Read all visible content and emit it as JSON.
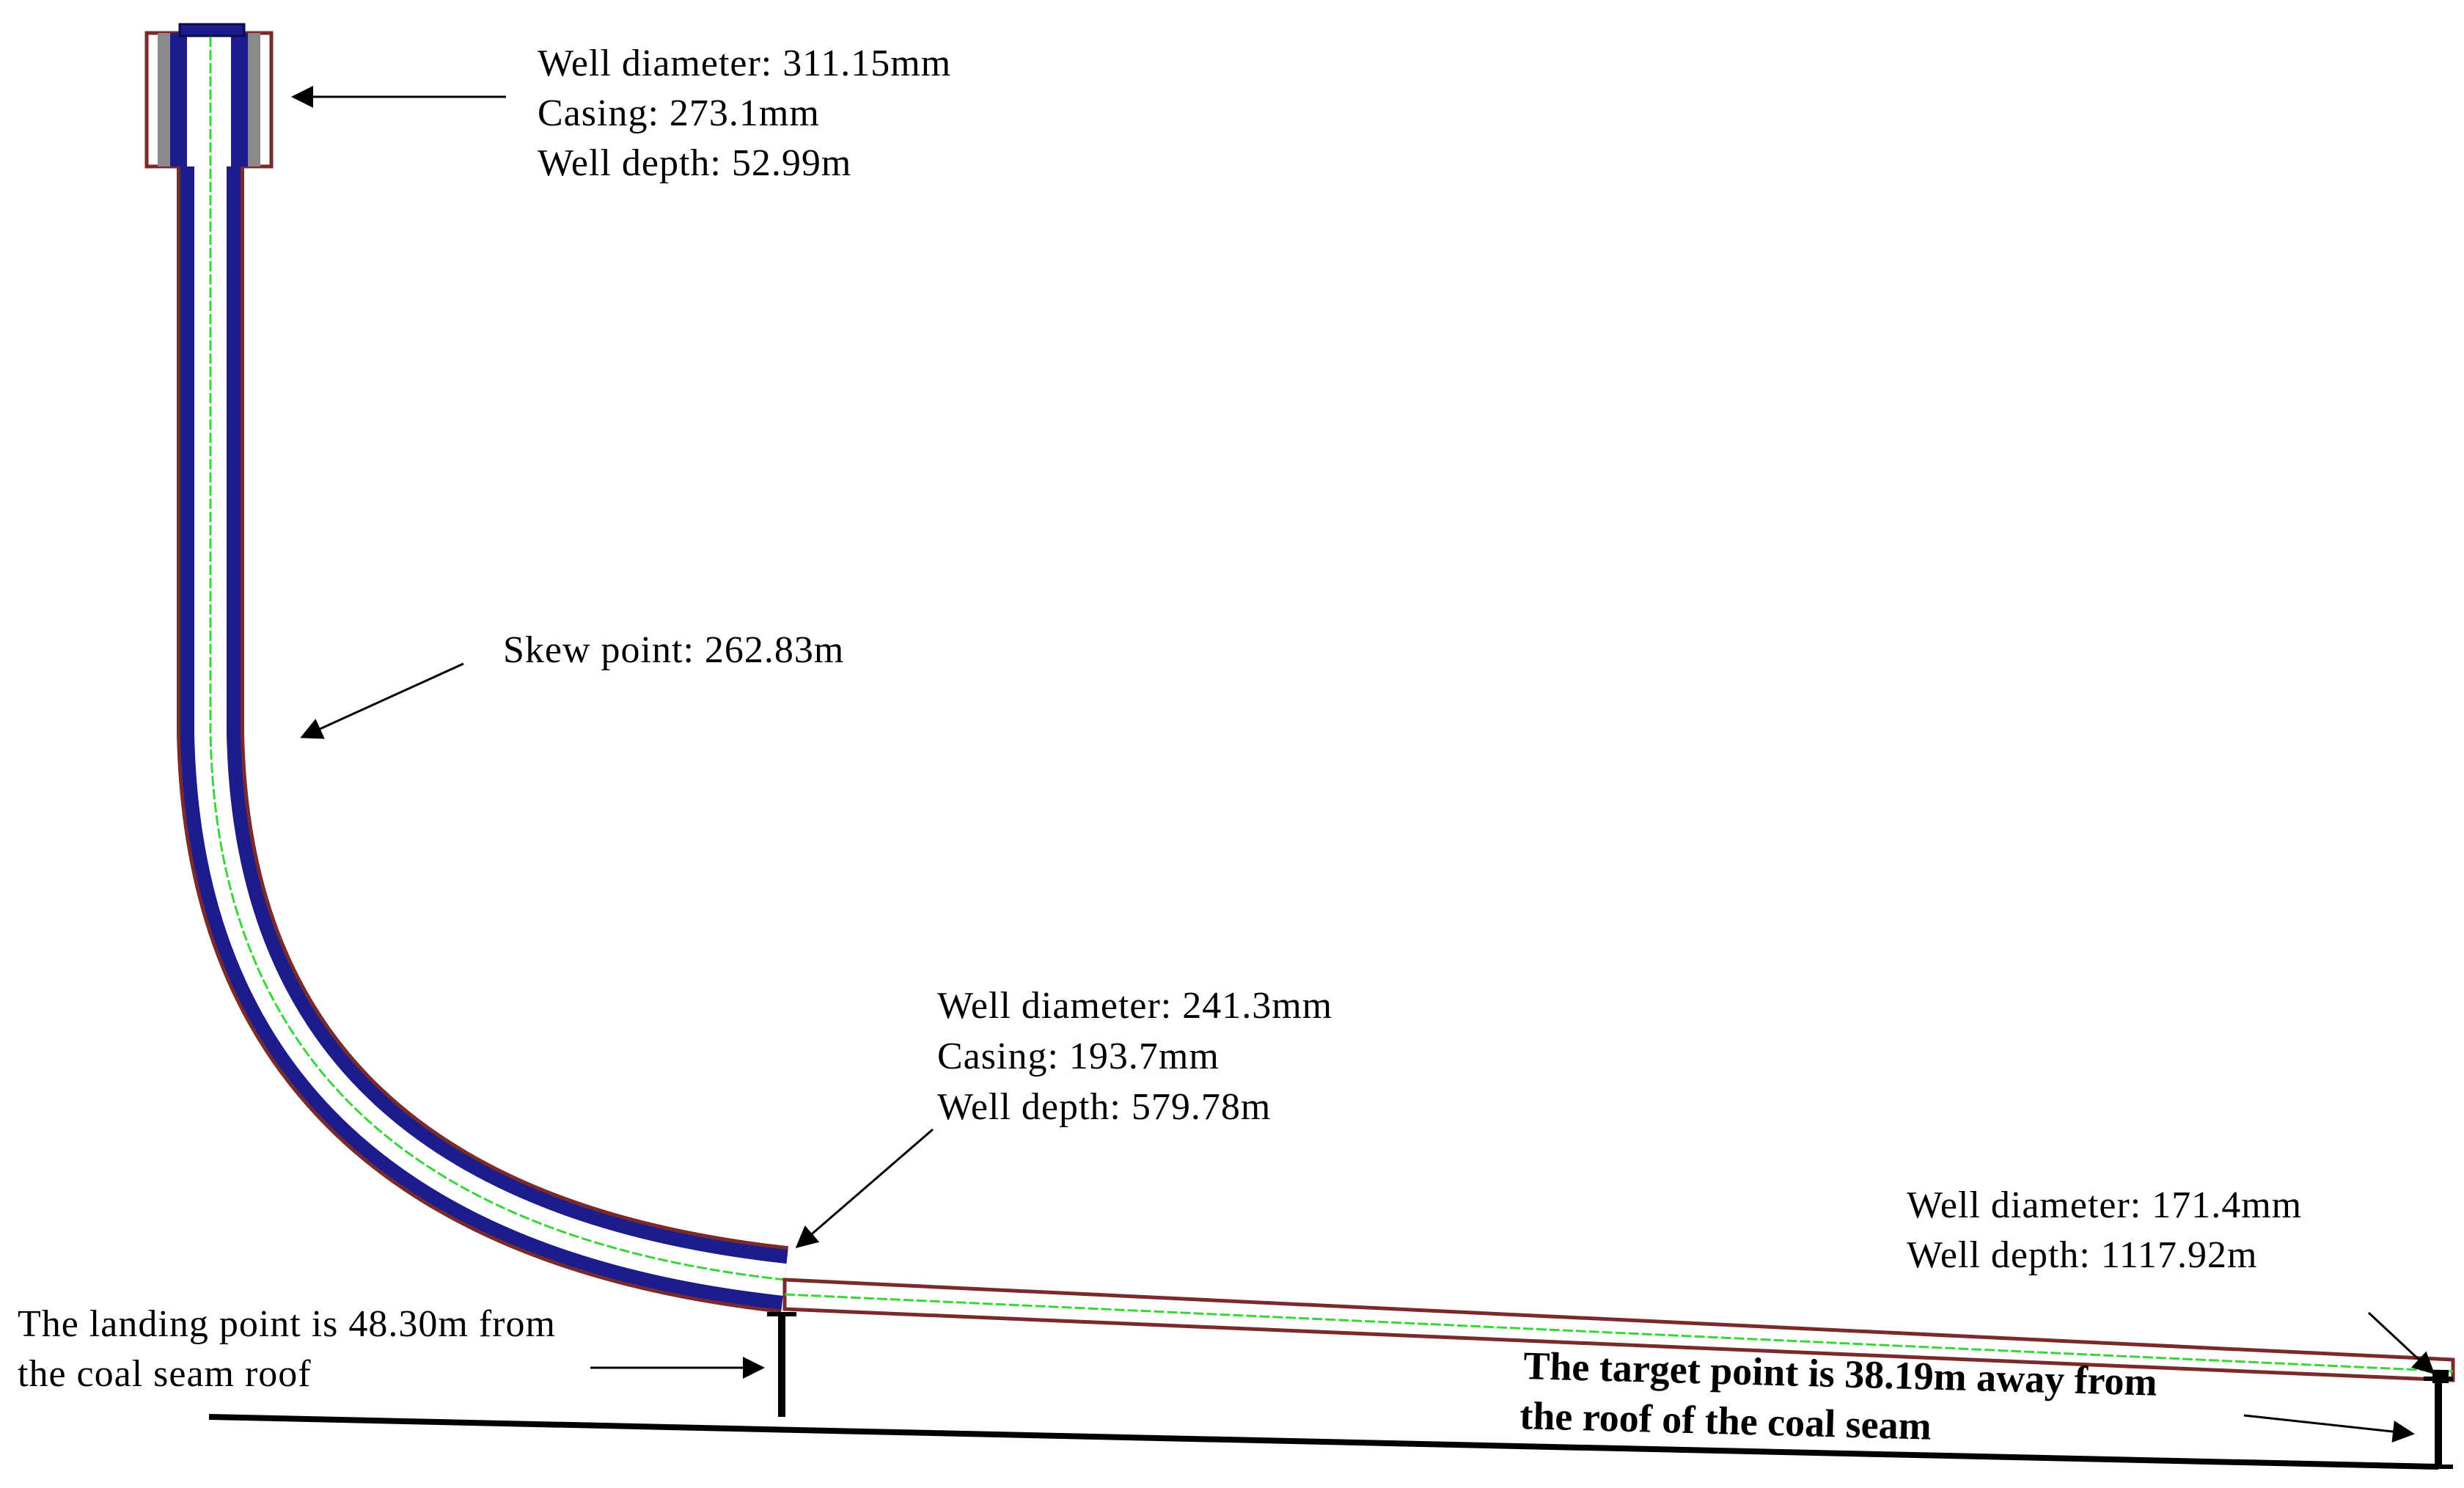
{
  "annotations": {
    "wellhead": {
      "line1": "Well diameter: 311.15mm",
      "line2": "Casing: 273.1mm",
      "line3": "Well depth: 52.99m"
    },
    "skew": {
      "line1": "Skew point: 262.83m"
    },
    "second_section": {
      "line1": "Well diameter: 241.3mm",
      "line2": "Casing: 193.7mm",
      "line3": "Well depth: 579.78m"
    },
    "horizontal_section": {
      "line1": "Well diameter: 171.4mm",
      "line2": "Well depth: 1117.92m"
    },
    "landing": {
      "line1": "The landing point is 48.30m from",
      "line2": "the coal seam roof"
    },
    "target": {
      "line1": "The target point is 38.19m away from",
      "line2": "the roof of the coal seam"
    }
  },
  "colors": {
    "casing": "#1c1c8c",
    "casing_edge": "#0a0a4a",
    "borehole_wall": "#7a2a2a",
    "center_line": "#39d639",
    "coal_seam": "#000000"
  }
}
